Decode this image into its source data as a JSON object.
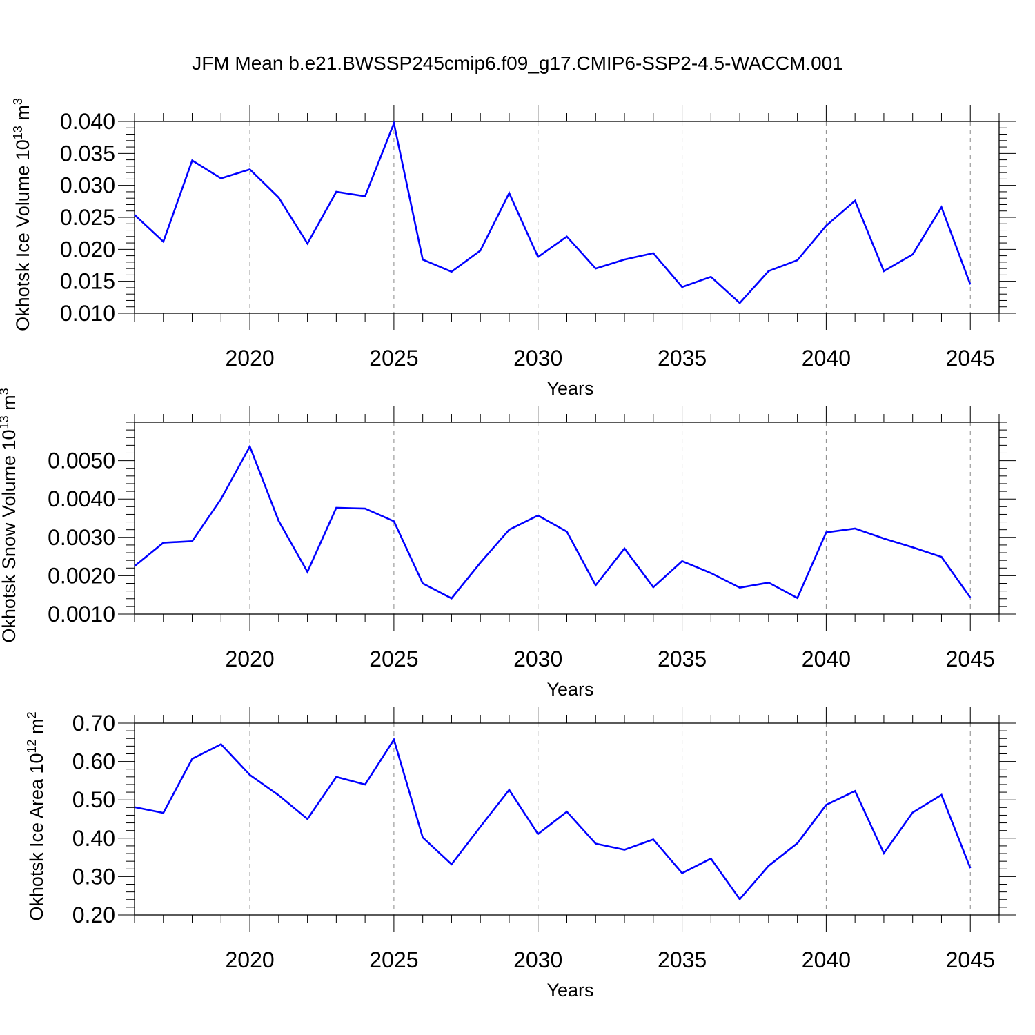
{
  "title": "JFM Mean b.e21.BWSSP245cmip6.f09_g17.CMIP6-SSP2-4.5-WACCM.001",
  "colors": {
    "line": "#0000ff",
    "axis": "#000000",
    "grid": "#888888"
  },
  "chart_data": [
    {
      "type": "line",
      "ylabel": {
        "text": "Okhotsk Ice Volume 10",
        "exp": "13",
        "unit": " m",
        "unit_exp": "3"
      },
      "xlabel": "Years",
      "x": [
        2016,
        2017,
        2018,
        2019,
        2020,
        2021,
        2022,
        2023,
        2024,
        2025,
        2026,
        2027,
        2028,
        2029,
        2030,
        2031,
        2032,
        2033,
        2034,
        2035,
        2036,
        2037,
        2038,
        2039,
        2040,
        2041,
        2042,
        2043,
        2044,
        2045
      ],
      "values": [
        0.0254,
        0.0212,
        0.0339,
        0.0311,
        0.0325,
        0.0281,
        0.0209,
        0.029,
        0.0283,
        0.0397,
        0.0184,
        0.0165,
        0.0198,
        0.0288,
        0.0188,
        0.022,
        0.017,
        0.0184,
        0.0194,
        0.0141,
        0.0157,
        0.0116,
        0.0166,
        0.0183,
        0.0237,
        0.0276,
        0.0166,
        0.0192,
        0.0266,
        0.0145
      ],
      "xlim": [
        2016,
        2046
      ],
      "ylim": [
        0.01,
        0.04
      ],
      "xticks": [
        "2020",
        "2025",
        "2030",
        "2035",
        "2040",
        "2045"
      ],
      "yticks": [
        "0.010",
        "0.015",
        "0.020",
        "0.025",
        "0.030",
        "0.035",
        "0.040"
      ],
      "grid": "vertical dashed at major x ticks"
    },
    {
      "type": "line",
      "ylabel": {
        "text": "Okhotsk Snow Volume 10",
        "exp": "13",
        "unit": " m",
        "unit_exp": "3"
      },
      "xlabel": "Years",
      "x": [
        2016,
        2017,
        2018,
        2019,
        2020,
        2021,
        2022,
        2023,
        2024,
        2025,
        2026,
        2027,
        2028,
        2029,
        2030,
        2031,
        2032,
        2033,
        2034,
        2035,
        2036,
        2037,
        2038,
        2039,
        2040,
        2041,
        2042,
        2043,
        2044,
        2045
      ],
      "values": [
        0.00225,
        0.00286,
        0.0029,
        0.004,
        0.00537,
        0.00343,
        0.0021,
        0.00377,
        0.00375,
        0.00342,
        0.0018,
        0.00141,
        0.00234,
        0.0032,
        0.00357,
        0.00315,
        0.00175,
        0.00271,
        0.0017,
        0.00238,
        0.00207,
        0.00169,
        0.00182,
        0.00142,
        0.00313,
        0.00323,
        0.00297,
        0.00274,
        0.00249,
        0.00143
      ],
      "xlim": [
        2016,
        2046
      ],
      "ylim": [
        0.001,
        0.006
      ],
      "xticks": [
        "2020",
        "2025",
        "2030",
        "2035",
        "2040",
        "2045"
      ],
      "yticks": [
        "0.0010",
        "0.0020",
        "0.0030",
        "0.0040",
        "0.0050"
      ],
      "grid": "vertical dashed at major x ticks"
    },
    {
      "type": "line",
      "ylabel": {
        "text": "Okhotsk Ice Area 10",
        "exp": "12",
        "unit": " m",
        "unit_exp": "2"
      },
      "xlabel": "Years",
      "x": [
        2016,
        2017,
        2018,
        2019,
        2020,
        2021,
        2022,
        2023,
        2024,
        2025,
        2026,
        2027,
        2028,
        2029,
        2030,
        2031,
        2032,
        2033,
        2034,
        2035,
        2036,
        2037,
        2038,
        2039,
        2040,
        2041,
        2042,
        2043,
        2044,
        2045
      ],
      "values": [
        0.481,
        0.466,
        0.607,
        0.645,
        0.565,
        0.512,
        0.45,
        0.56,
        0.54,
        0.657,
        0.402,
        0.332,
        0.43,
        0.526,
        0.411,
        0.469,
        0.386,
        0.37,
        0.397,
        0.309,
        0.347,
        0.241,
        0.328,
        0.387,
        0.487,
        0.523,
        0.361,
        0.467,
        0.513,
        0.322
      ],
      "xlim": [
        2016,
        2046
      ],
      "ylim": [
        0.2,
        0.7
      ],
      "xticks": [
        "2020",
        "2025",
        "2030",
        "2035",
        "2040",
        "2045"
      ],
      "yticks": [
        "0.20",
        "0.30",
        "0.40",
        "0.50",
        "0.60",
        "0.70"
      ],
      "grid": "vertical dashed at major x ticks"
    }
  ]
}
